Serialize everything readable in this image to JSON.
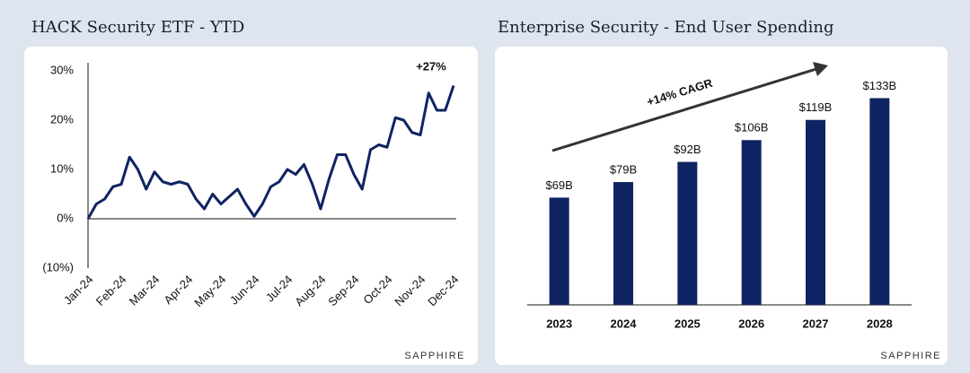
{
  "chart_data": [
    {
      "type": "line",
      "title": "HACK Security ETF - YTD",
      "annotation": "+27%",
      "source": "SAPPHIRE",
      "color": "#0f2462",
      "annotation_color": "#1fa651",
      "categories": [
        "Jan-24",
        null,
        null,
        null,
        "Feb-24",
        null,
        null,
        null,
        "Mar-24",
        null,
        null,
        null,
        "Apr-24",
        null,
        null,
        null,
        "May-24",
        null,
        null,
        null,
        "Jun-24",
        null,
        null,
        null,
        "Jul-24",
        null,
        null,
        null,
        "Aug-24",
        null,
        null,
        null,
        "Sep-24",
        null,
        null,
        null,
        "Oct-24",
        null,
        null,
        null,
        "Nov-24",
        null,
        null,
        null,
        "Dec-24"
      ],
      "values": [
        0,
        3,
        4,
        6.5,
        7,
        12.5,
        10,
        6,
        9.5,
        7.5,
        7,
        7.5,
        7,
        4,
        2,
        5,
        3,
        4.5,
        6,
        3,
        0.5,
        3,
        6.5,
        7.5,
        10,
        9,
        11,
        7,
        2,
        8,
        13,
        13,
        9,
        6,
        14,
        15,
        14.5,
        20.5,
        20,
        17.5,
        17,
        25.5,
        22,
        22,
        27
      ],
      "ylim": [
        -10,
        30
      ],
      "yticks": [
        {
          "value": 30,
          "label": "30%"
        },
        {
          "value": 20,
          "label": "20%"
        },
        {
          "value": 10,
          "label": "10%"
        },
        {
          "value": 0,
          "label": "0%"
        },
        {
          "value": -10,
          "label": "(10%)"
        }
      ]
    },
    {
      "type": "bar",
      "title": "Enterprise Security - End User Spending",
      "annotation": "+14% CAGR",
      "source": "SAPPHIRE",
      "color": "#0f2462",
      "annotation_color": "#1fa651",
      "categories": [
        "2023",
        "2024",
        "2025",
        "2026",
        "2027",
        "2028"
      ],
      "values": [
        69,
        79,
        92,
        106,
        119,
        133
      ],
      "value_labels": [
        "$69B",
        "$79B",
        "$92B",
        "$106B",
        "$119B",
        "$133B"
      ],
      "ylim": [
        0,
        150
      ]
    }
  ]
}
